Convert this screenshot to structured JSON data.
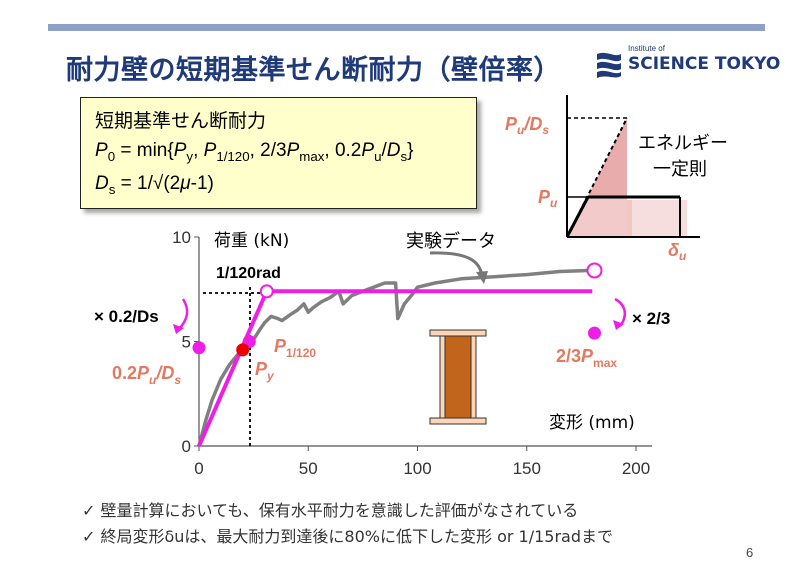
{
  "slide": {
    "title": "耐力壁の短期基準せん断耐力（壁倍率）",
    "page_number": "6",
    "logo": {
      "sub": "Institute of",
      "main": "SCIENCE TOKYO"
    }
  },
  "definition": {
    "heading": "短期基準せん断耐力",
    "formula1": "P0 = min{Py, P1/120, 2/3Pmax, 0.2Pu/Ds}",
    "formula2": "Ds = 1/√(2μ-1)"
  },
  "inset": {
    "label_top": "Pu/Ds",
    "label_mid": "Pu",
    "label_x": "δu",
    "rule": "エネルギー一定則",
    "rule_line1": "エネルギー",
    "rule_line2": "一定則"
  },
  "chart_data": {
    "type": "line",
    "ylabel": "荷重 (kN)",
    "xlabel": "変形 (mm)",
    "xlim": [
      0,
      200
    ],
    "ylim": [
      0,
      10
    ],
    "x_ticks": [
      "0",
      "50",
      "100",
      "150",
      "200"
    ],
    "y_ticks": [
      "0",
      "5",
      "10"
    ],
    "series": [
      {
        "name": "実験データ",
        "points": [
          [
            0,
            0
          ],
          [
            3,
            1.2
          ],
          [
            6,
            2.2
          ],
          [
            10,
            3.2
          ],
          [
            14,
            3.9
          ],
          [
            18,
            4.4
          ],
          [
            22,
            4.8
          ],
          [
            25,
            5.1
          ],
          [
            28,
            5.6
          ],
          [
            30,
            5.9
          ],
          [
            33,
            6.2
          ],
          [
            36,
            6.1
          ],
          [
            38,
            6.0
          ],
          [
            42,
            6.3
          ],
          [
            45,
            6.5
          ],
          [
            48,
            6.8
          ],
          [
            50,
            6.4
          ],
          [
            52,
            6.6
          ],
          [
            56,
            6.9
          ],
          [
            60,
            7.1
          ],
          [
            64,
            7.4
          ],
          [
            66,
            6.8
          ],
          [
            70,
            7.2
          ],
          [
            75,
            7.4
          ],
          [
            80,
            7.6
          ],
          [
            85,
            7.8
          ],
          [
            90,
            7.8
          ],
          [
            91,
            6.1
          ],
          [
            94,
            6.8
          ],
          [
            98,
            7.3
          ],
          [
            100,
            7.6
          ],
          [
            108,
            7.8
          ],
          [
            120,
            8.0
          ],
          [
            135,
            8.1
          ],
          [
            150,
            8.2
          ],
          [
            165,
            8.35
          ],
          [
            180,
            8.4
          ]
        ]
      },
      {
        "name": "bilinear",
        "points": [
          [
            0,
            0
          ],
          [
            31,
            7.4
          ],
          [
            180,
            7.4
          ]
        ]
      }
    ],
    "markers": {
      "p_120": {
        "x": 23,
        "y": 5.0,
        "label": "P1/120"
      },
      "py": {
        "x": 20,
        "y": 4.6,
        "label": "Py"
      },
      "pu_ds": {
        "x": 0,
        "y": 4.7,
        "label": "0.2Pu/Ds"
      },
      "pmax23": {
        "x": 181,
        "y": 5.4,
        "label": "2/3Pmax"
      },
      "yield_open": {
        "x": 31,
        "y": 7.4
      },
      "max_open": {
        "x": 181,
        "y": 8.4
      }
    },
    "annotations": {
      "rad": "1/120rad",
      "rad_x": 23,
      "mult_left": "× 0.2/Ds",
      "mult_right": "× 2/3",
      "series_label": "実験データ"
    }
  },
  "bullets": [
    "壁量計算においても、保有水平耐力を意識した評価がなされている",
    "終局変形δuは、最大耐力到達後に80%に低下した変形 or 1/15radまで"
  ]
}
